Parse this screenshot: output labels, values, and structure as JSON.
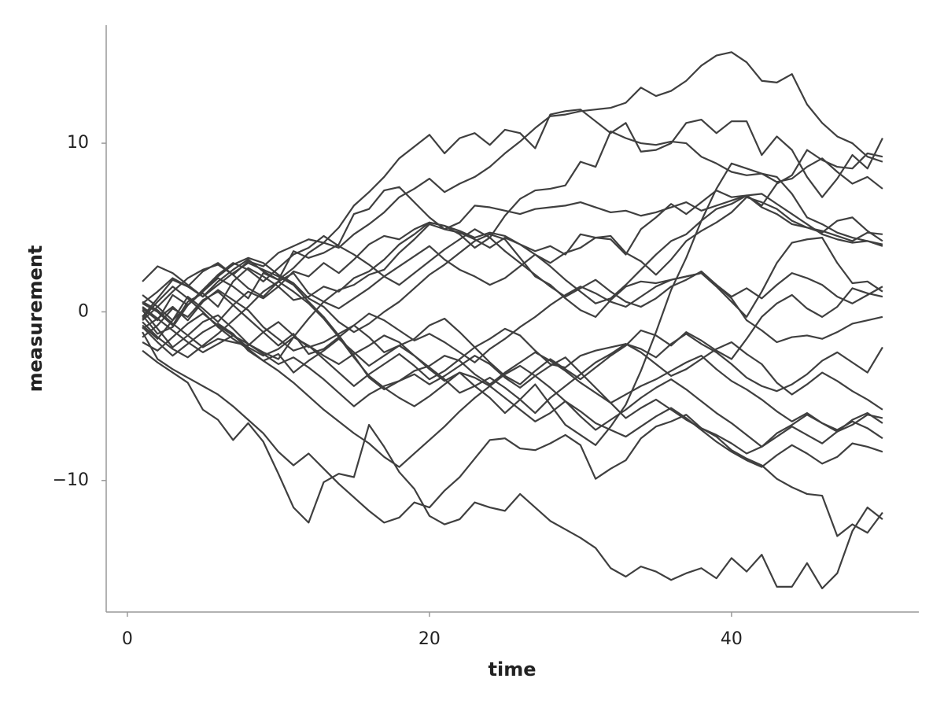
{
  "chart_data": {
    "type": "line",
    "x_label": "time",
    "y_label": "measurement",
    "color": "#3f3f3f",
    "x": [
      1,
      2,
      3,
      4,
      5,
      6,
      7,
      8,
      9,
      10,
      11,
      12,
      13,
      14,
      15,
      16,
      17,
      18,
      19,
      20,
      21,
      22,
      23,
      24,
      25,
      26,
      27,
      28,
      29,
      30,
      31,
      32,
      33,
      34,
      35,
      36,
      37,
      38,
      39,
      40,
      41,
      42,
      43,
      44,
      45,
      46,
      47,
      48,
      49,
      50
    ],
    "xlim": [
      -1.4,
      52.4
    ],
    "xticks": [
      0,
      20,
      40
    ],
    "ylim": [
      -17.8,
      17.0
    ],
    "yticks": [
      {
        "value": -10,
        "label": "−10"
      },
      0,
      10
    ],
    "series": [
      {
        "values": [
          0.2,
          -0.5,
          1.0,
          0.4,
          1.2,
          2.0,
          1.5,
          0.8,
          2.3,
          1.9,
          2.6,
          3.5,
          4.1,
          3.8,
          4.6,
          5.2,
          5.9,
          6.8,
          7.3,
          7.9,
          7.1,
          7.6,
          8.0,
          8.6,
          9.4,
          10.1,
          10.9,
          11.6,
          11.7,
          11.9,
          12.0,
          12.1,
          12.4,
          13.3,
          12.8,
          13.1,
          13.7,
          14.6,
          15.2,
          15.4,
          14.8,
          13.7,
          13.6,
          14.1,
          12.3,
          11.2,
          10.4,
          10.0,
          9.2,
          8.9
        ]
      },
      {
        "values": [
          -0.3,
          0.8,
          1.9,
          1.5,
          2.4,
          2.9,
          2.2,
          3.0,
          2.7,
          3.5,
          3.9,
          4.3,
          4.1,
          5.0,
          6.3,
          7.1,
          8.0,
          9.1,
          9.8,
          10.5,
          9.4,
          10.3,
          10.6,
          9.9,
          10.8,
          10.6,
          9.7,
          11.7,
          11.9,
          12.0,
          11.3,
          10.6,
          11.2,
          9.5,
          9.6,
          10.0,
          11.2,
          11.4,
          10.6,
          11.3,
          11.3,
          9.3,
          10.4,
          9.6,
          8.0,
          6.8,
          7.9,
          9.3,
          8.5,
          10.3
        ]
      },
      {
        "values": [
          -1.2,
          -2.8,
          -3.4,
          -3.9,
          -4.4,
          -4.9,
          -5.6,
          -6.4,
          -7.2,
          -8.3,
          -9.1,
          -8.4,
          -9.3,
          -10.2,
          -11.0,
          -11.8,
          -12.5,
          -12.2,
          -11.3,
          -11.6,
          -10.6,
          -9.8,
          -8.7,
          -7.6,
          -7.5,
          -8.1,
          -8.2,
          -7.8,
          -7.3,
          -7.9,
          -9.9,
          -9.3,
          -8.8,
          -7.5,
          -6.8,
          -6.5,
          -6.1,
          -6.9,
          -7.4,
          -8.2,
          -8.7,
          -9.1,
          -9.9,
          -10.4,
          -10.8,
          -10.9,
          -13.3,
          -12.6,
          -13.1,
          -11.9
        ]
      },
      {
        "values": [
          -2.3,
          -3.0,
          -3.6,
          -4.2,
          -5.8,
          -6.4,
          -7.6,
          -6.6,
          -7.7,
          -9.6,
          -11.6,
          -12.5,
          -10.1,
          -9.6,
          -9.8,
          -6.7,
          -8.0,
          -9.5,
          -10.5,
          -12.1,
          -12.6,
          -12.3,
          -11.3,
          -11.6,
          -11.8,
          -10.8,
          -11.6,
          -12.4,
          -12.9,
          -13.4,
          -14.0,
          -15.2,
          -15.7,
          -15.1,
          -15.4,
          -15.9,
          -15.5,
          -15.2,
          -15.8,
          -14.6,
          -15.4,
          -14.4,
          -16.3,
          -16.3,
          -14.9,
          -16.4,
          -15.5,
          -13.0,
          -11.6,
          -12.3
        ]
      },
      {
        "values": [
          0.5,
          0.0,
          -0.8,
          0.6,
          1.1,
          0.3,
          1.8,
          2.6,
          2.1,
          1.5,
          0.7,
          0.9,
          1.5,
          1.2,
          2.0,
          2.4,
          3.1,
          4.0,
          4.6,
          5.3,
          5.1,
          4.8,
          4.4,
          4.7,
          4.5,
          4.0,
          3.6,
          3.9,
          3.4,
          4.6,
          4.4,
          4.3,
          3.4,
          4.9,
          5.6,
          6.4,
          5.8,
          6.5,
          7.2,
          6.8,
          6.9,
          6.3,
          7.6,
          8.1,
          9.6,
          9.0,
          8.6,
          8.5,
          9.4,
          9.2
        ]
      },
      {
        "values": [
          -0.8,
          -1.6,
          -0.5,
          0.9,
          0.2,
          -0.6,
          0.4,
          1.2,
          0.8,
          1.5,
          2.4,
          2.1,
          2.9,
          2.3,
          3.1,
          4.0,
          4.5,
          4.3,
          4.9,
          5.3,
          5.1,
          4.6,
          3.8,
          4.4,
          5.7,
          6.7,
          7.2,
          7.3,
          7.5,
          8.9,
          8.6,
          10.7,
          10.3,
          10.0,
          9.9,
          10.1,
          10.0,
          9.2,
          8.8,
          8.3,
          8.1,
          8.2,
          7.7,
          7.9,
          8.6,
          9.1,
          8.3,
          7.6,
          8.0,
          7.3
        ]
      },
      {
        "values": [
          1.8,
          2.7,
          2.3,
          1.6,
          0.9,
          1.8,
          2.5,
          3.1,
          2.4,
          1.9,
          3.6,
          3.2,
          3.5,
          4.0,
          5.8,
          6.1,
          7.2,
          7.4,
          6.5,
          5.6,
          4.9,
          5.3,
          6.3,
          6.2,
          6.0,
          5.8,
          6.1,
          6.2,
          6.3,
          6.5,
          6.2,
          5.9,
          6.0,
          5.7,
          5.9,
          6.2,
          6.5,
          6.0,
          6.3,
          6.6,
          6.9,
          6.2,
          5.8,
          5.2,
          5.0,
          4.8,
          4.5,
          4.2,
          4.7,
          4.6
        ]
      },
      {
        "values": [
          -0.5,
          0.3,
          1.2,
          2.0,
          2.5,
          2.8,
          2.2,
          1.4,
          0.9,
          1.8,
          2.3,
          1.1,
          0.6,
          0.2,
          0.8,
          1.4,
          2.1,
          2.7,
          3.3,
          3.9,
          3.1,
          2.5,
          2.1,
          1.6,
          2.0,
          2.7,
          3.4,
          2.9,
          3.5,
          3.8,
          4.4,
          4.5,
          3.5,
          3.0,
          2.2,
          3.1,
          4.2,
          4.8,
          5.3,
          5.9,
          6.8,
          6.5,
          6.1,
          5.4,
          5.0,
          4.7,
          5.4,
          5.6,
          4.8,
          4.2
        ]
      },
      {
        "values": [
          0.1,
          -1.0,
          -2.1,
          -1.4,
          -0.6,
          -0.2,
          -1.0,
          -1.9,
          -2.4,
          -2.8,
          -1.5,
          -0.4,
          0.6,
          1.3,
          1.6,
          2.2,
          2.5,
          3.5,
          4.3,
          5.2,
          4.9,
          4.7,
          4.3,
          3.8,
          4.4,
          4.0,
          3.4,
          2.7,
          1.9,
          1.2,
          0.5,
          0.8,
          1.6,
          2.5,
          3.4,
          4.2,
          4.6,
          5.4,
          6.1,
          6.4,
          6.9,
          7.0,
          6.4,
          5.8,
          5.2,
          4.6,
          4.3,
          4.1,
          4.2,
          4.0
        ]
      },
      {
        "values": [
          -1.0,
          -0.4,
          0.3,
          -0.5,
          0.6,
          1.3,
          0.7,
          0.1,
          -0.9,
          -1.6,
          -2.3,
          -2.0,
          -2.6,
          -3.1,
          -2.5,
          -2.0,
          -1.4,
          -1.8,
          -2.6,
          -3.4,
          -4.1,
          -3.6,
          -4.4,
          -5.1,
          -6.0,
          -5.2,
          -4.3,
          -5.5,
          -6.7,
          -7.3,
          -7.9,
          -6.8,
          -5.5,
          -3.5,
          -1.2,
          1.3,
          3.2,
          5.4,
          7.3,
          8.8,
          8.5,
          8.2,
          8.0,
          7.0,
          5.6,
          5.2,
          4.7,
          4.4,
          4.2,
          3.9
        ]
      },
      {
        "values": [
          -0.2,
          -1.3,
          -0.9,
          0.4,
          1.3,
          2.1,
          2.8,
          3.2,
          2.9,
          2.2,
          1.7,
          0.8,
          0.3,
          -0.6,
          -1.2,
          -0.7,
          0.0,
          0.6,
          1.4,
          2.2,
          2.8,
          3.5,
          4.2,
          4.6,
          4.3,
          3.2,
          2.1,
          1.6,
          0.8,
          0.1,
          -0.3,
          0.7,
          1.5,
          1.8,
          1.7,
          1.9,
          2.1,
          2.3,
          1.5,
          0.6,
          -0.3,
          1.2,
          2.9,
          4.1,
          4.3,
          4.4,
          2.9,
          1.7,
          1.8,
          1.2
        ]
      },
      {
        "values": [
          0.6,
          0.1,
          -0.7,
          -1.4,
          -2.1,
          -1.6,
          -1.8,
          -2.0,
          -1.2,
          -0.6,
          -1.4,
          -2.1,
          -1.8,
          -1.3,
          -0.8,
          -1.5,
          -2.4,
          -2.0,
          -1.6,
          -0.8,
          -0.4,
          -1.2,
          -2.1,
          -3.0,
          -3.8,
          -4.3,
          -3.5,
          -2.8,
          -3.4,
          -4.0,
          -3.3,
          -2.6,
          -2.0,
          -1.1,
          -1.4,
          -2.0,
          -1.2,
          -1.7,
          -2.3,
          -2.8,
          -1.6,
          -0.3,
          0.5,
          1.0,
          0.2,
          -0.3,
          0.3,
          1.4,
          1.1,
          0.9
        ]
      },
      {
        "values": [
          -1.5,
          -0.8,
          0.2,
          -0.3,
          0.7,
          1.2,
          0.4,
          -0.4,
          -1.2,
          -2.0,
          -1.3,
          -2.5,
          -2.2,
          -1.5,
          -0.8,
          -0.1,
          -0.5,
          -1.1,
          -1.7,
          -1.3,
          -1.8,
          -2.4,
          -3.0,
          -2.2,
          -1.6,
          -0.9,
          -0.3,
          0.4,
          1.0,
          1.5,
          1.1,
          0.6,
          0.3,
          0.9,
          1.5,
          1.9,
          2.1,
          2.3,
          1.6,
          0.8,
          -0.5,
          -1.1,
          -1.8,
          -1.5,
          -1.4,
          -1.6,
          -1.2,
          -0.7,
          -0.5,
          -0.3
        ]
      },
      {
        "values": [
          -0.9,
          -1.8,
          -2.6,
          -1.9,
          -1.2,
          -0.7,
          -1.3,
          -2.3,
          -2.9,
          -2.5,
          -3.6,
          -2.9,
          -2.3,
          -1.6,
          -2.4,
          -3.2,
          -2.6,
          -2.0,
          -2.6,
          -3.3,
          -4.0,
          -4.8,
          -4.4,
          -3.9,
          -4.5,
          -5.2,
          -6.0,
          -5.1,
          -4.4,
          -3.7,
          -3.0,
          -2.5,
          -1.9,
          -2.2,
          -2.7,
          -1.9,
          -1.3,
          -1.9,
          -2.4,
          -3.1,
          -3.9,
          -4.4,
          -4.7,
          -4.3,
          -3.7,
          -2.9,
          -2.4,
          -3.0,
          -3.6,
          -2.1
        ]
      },
      {
        "values": [
          0.3,
          -0.4,
          -1.1,
          -1.8,
          -2.4,
          -1.9,
          -1.4,
          -2.1,
          -2.6,
          -2.2,
          -1.5,
          -2.0,
          -2.8,
          -3.6,
          -4.4,
          -3.7,
          -3.1,
          -2.5,
          -3.2,
          -4.0,
          -3.5,
          -2.8,
          -2.1,
          -1.6,
          -1.0,
          -1.4,
          -2.3,
          -3.1,
          -3.3,
          -2.6,
          -2.3,
          -2.1,
          -1.9,
          -2.4,
          -3.1,
          -3.8,
          -3.4,
          -2.8,
          -2.2,
          -1.8,
          -2.5,
          -3.1,
          -4.2,
          -4.9,
          -4.3,
          -3.6,
          -4.1,
          -4.7,
          -5.2,
          -5.8
        ]
      },
      {
        "values": [
          -1.8,
          -2.3,
          -1.5,
          -0.7,
          -0.1,
          -0.8,
          -1.4,
          -1.9,
          -2.5,
          -3.1,
          -2.7,
          -3.3,
          -4.0,
          -4.8,
          -5.6,
          -4.9,
          -4.4,
          -4.1,
          -3.5,
          -3.2,
          -2.6,
          -2.9,
          -3.7,
          -4.3,
          -3.6,
          -3.0,
          -2.4,
          -2.9,
          -3.5,
          -4.2,
          -4.8,
          -5.4,
          -4.9,
          -4.4,
          -4.0,
          -3.5,
          -3.0,
          -2.6,
          -3.4,
          -4.1,
          -4.6,
          -5.2,
          -5.9,
          -6.5,
          -6.0,
          -6.6,
          -7.1,
          -6.7,
          -6.1,
          -6.3
        ]
      },
      {
        "values": [
          0.5,
          1.2,
          2.0,
          1.5,
          0.9,
          1.6,
          2.3,
          2.9,
          2.5,
          2.1,
          1.6,
          0.6,
          -0.3,
          -1.4,
          -2.6,
          -3.9,
          -4.6,
          -4.1,
          -3.7,
          -4.3,
          -3.8,
          -3.2,
          -2.6,
          -3.1,
          -3.9,
          -4.5,
          -3.8,
          -3.2,
          -2.7,
          -3.6,
          -4.5,
          -5.4,
          -6.3,
          -5.7,
          -5.2,
          -5.8,
          -6.4,
          -6.9,
          -7.3,
          -7.8,
          -8.4,
          -8.0,
          -7.2,
          -6.7,
          -6.1,
          -6.6,
          -7.0,
          -6.5,
          -6.9,
          -7.5
        ]
      },
      {
        "values": [
          -0.6,
          -1.5,
          -2.2,
          -2.7,
          -2.0,
          -1.3,
          -0.5,
          0.3,
          1.2,
          1.8,
          1.2,
          0.5,
          -0.4,
          -1.5,
          -2.7,
          -3.8,
          -4.5,
          -5.1,
          -5.6,
          -5.0,
          -4.3,
          -3.6,
          -3.9,
          -4.4,
          -5.1,
          -5.8,
          -6.5,
          -6.0,
          -5.3,
          -5.9,
          -6.6,
          -7.0,
          -7.4,
          -6.8,
          -6.2,
          -5.7,
          -6.3,
          -7.0,
          -7.7,
          -8.3,
          -8.8,
          -9.2,
          -8.5,
          -7.9,
          -8.4,
          -9.0,
          -8.6,
          -7.8,
          -8.0,
          -8.3
        ]
      },
      {
        "values": [
          1.0,
          0.3,
          -0.5,
          0.4,
          1.3,
          2.2,
          2.9,
          2.5,
          1.8,
          2.6,
          3.4,
          3.8,
          4.5,
          3.9,
          3.4,
          2.8,
          2.1,
          1.6,
          2.3,
          3.0,
          3.7,
          4.3,
          4.9,
          4.4,
          3.6,
          2.9,
          2.2,
          1.5,
          0.9,
          1.4,
          1.9,
          1.2,
          0.6,
          0.3,
          0.8,
          1.5,
          1.9,
          2.4,
          1.6,
          0.9,
          1.4,
          0.8,
          1.6,
          2.3,
          2.0,
          1.6,
          0.9,
          0.5,
          1.0,
          1.5
        ]
      },
      {
        "values": [
          -0.4,
          0.6,
          1.5,
          0.8,
          0.0,
          -0.9,
          -1.6,
          -2.2,
          -2.9,
          -3.5,
          -4.2,
          -5.0,
          -5.8,
          -6.5,
          -7.2,
          -7.8,
          -8.6,
          -9.2,
          -8.4,
          -7.6,
          -6.8,
          -5.9,
          -5.1,
          -4.4,
          -3.7,
          -3.2,
          -3.8,
          -4.5,
          -5.3,
          -6.2,
          -7.0,
          -6.4,
          -5.8,
          -5.1,
          -4.5,
          -4.0,
          -4.6,
          -5.3,
          -6.0,
          -6.6,
          -7.3,
          -8.0,
          -7.4,
          -6.8,
          -7.3,
          -7.8,
          -7.1,
          -6.4,
          -6.0,
          -6.6
        ]
      }
    ]
  }
}
